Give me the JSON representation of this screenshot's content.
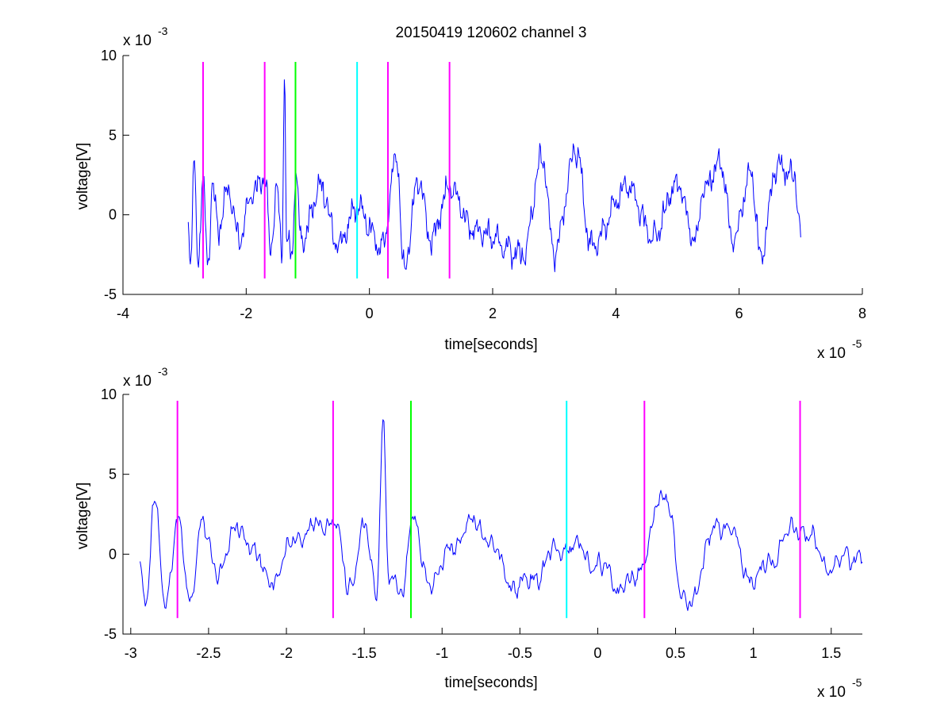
{
  "chart_data": [
    {
      "type": "line",
      "title": "20150419 120602 channel 3",
      "xlabel": "time[seconds]",
      "ylabel": "voltage[V]",
      "xlim": [
        -4e-05,
        8e-05
      ],
      "ylim": [
        -0.005,
        0.01
      ],
      "x_ticks": [
        -4e-05,
        -2e-05,
        0,
        2e-05,
        4e-05,
        6e-05,
        8e-05
      ],
      "x_tick_labels": [
        "-4",
        "-2",
        "0",
        "2",
        "4",
        "6",
        "8"
      ],
      "y_ticks": [
        -0.005,
        0,
        0.005,
        0.01
      ],
      "y_tick_labels": [
        "-5",
        "0",
        "5",
        "10"
      ],
      "x_exponent": {
        "base": "x 10",
        "power": "-5"
      },
      "y_exponent": {
        "base": "x 10",
        "power": "-3"
      },
      "series": [
        {
          "color": "#0000ff",
          "x_start": -2.94e-05,
          "x_end": 7e-05,
          "samples": 900,
          "keypoints": [
            [
              -2.94e-05,
              0.0003
            ],
            [
              -2.9e-05,
              -0.0033
            ],
            [
              -2.85e-05,
              0.0031
            ],
            [
              -2.78e-05,
              -0.0028
            ],
            [
              -2.7e-05,
              0.0019
            ],
            [
              -2.62e-05,
              -0.003
            ],
            [
              -2.55e-05,
              0.0018
            ],
            [
              -2.45e-05,
              -0.001
            ],
            [
              -2.3e-05,
              0.0015
            ],
            [
              -2.1e-05,
              -0.0016
            ],
            [
              -1.9e-05,
              0.0014
            ],
            [
              -1.7e-05,
              0.0023
            ],
            [
              -1.6e-05,
              -0.002
            ],
            [
              -1.5e-05,
              0.0015
            ],
            [
              -1.42e-05,
              -0.0025
            ],
            [
              -1.38e-05,
              0.0086
            ],
            [
              -1.34e-05,
              -0.002
            ],
            [
              -1.25e-05,
              -0.0022
            ],
            [
              -1.2e-05,
              0.0026
            ],
            [
              -1.1e-05,
              -0.0015
            ],
            [
              -8e-06,
              0.0018
            ],
            [
              -5e-06,
              -0.002
            ],
            [
              -2e-06,
              0.0005
            ],
            [
              2e-06,
              -0.002
            ],
            [
              4.5e-06,
              0.0037
            ],
            [
              5.5e-06,
              -0.0035
            ],
            [
              8e-06,
              0.002
            ],
            [
              1e-05,
              -0.0015
            ],
            [
              1.3e-05,
              0.0017
            ],
            [
              1.7e-05,
              -0.001
            ],
            [
              2.5e-05,
              -0.0025
            ],
            [
              2.8e-05,
              0.0036
            ],
            [
              3e-05,
              -0.0025
            ],
            [
              3.35e-05,
              0.004
            ],
            [
              3.6e-05,
              -0.002
            ],
            [
              4.2e-05,
              0.0018
            ],
            [
              4.6e-05,
              -0.0015
            ],
            [
              5e-05,
              0.002
            ],
            [
              5.3e-05,
              -0.0018
            ],
            [
              5.4e-05,
              0.0015
            ],
            [
              5.7e-05,
              0.0032
            ],
            [
              5.9e-05,
              -0.0018
            ],
            [
              6.2e-05,
              0.0028
            ],
            [
              6.35e-05,
              -0.0027
            ],
            [
              6.6e-05,
              0.003
            ],
            [
              6.9e-05,
              0.0024
            ],
            [
              7e-05,
              -0.0012
            ]
          ]
        }
      ],
      "markers": [
        {
          "x": -2.7e-05,
          "color": "#ff00ff",
          "y_range": [
            -0.004,
            0.0096
          ]
        },
        {
          "x": -1.7e-05,
          "color": "#ff00ff",
          "y_range": [
            -0.004,
            0.0096
          ]
        },
        {
          "x": -1.2e-05,
          "color": "#00ff00",
          "y_range": [
            -0.004,
            0.0096
          ]
        },
        {
          "x": -2e-06,
          "color": "#00ffff",
          "y_range": [
            -0.004,
            0.0096
          ]
        },
        {
          "x": 3e-06,
          "color": "#ff00ff",
          "y_range": [
            -0.004,
            0.0096
          ]
        },
        {
          "x": 1.3e-05,
          "color": "#ff00ff",
          "y_range": [
            -0.004,
            0.0096
          ]
        }
      ],
      "grid": false
    },
    {
      "type": "line",
      "xlabel": "time[seconds]",
      "ylabel": "voltage[V]",
      "xlim": [
        -3.05e-05,
        1.7e-05
      ],
      "ylim": [
        -0.005,
        0.01
      ],
      "x_ticks": [
        -3e-05,
        -2.5e-05,
        -2e-05,
        -1.5e-05,
        -1e-05,
        -5e-06,
        0,
        5e-06,
        1e-05,
        1.5e-05
      ],
      "x_tick_labels": [
        "-3",
        "-2.5",
        "-2",
        "-1.5",
        "-1",
        "-0.5",
        "0",
        "0.5",
        "1",
        "1.5"
      ],
      "y_ticks": [
        -0.005,
        0,
        0.005,
        0.01
      ],
      "y_tick_labels": [
        "-5",
        "0",
        "5",
        "10"
      ],
      "x_exponent": {
        "base": "x 10",
        "power": "-5"
      },
      "y_exponent": {
        "base": "x 10",
        "power": "-3"
      },
      "series": [
        {
          "color": "#0000ff",
          "x_start": -2.94e-05,
          "x_end": 1.7e-05,
          "samples": 700,
          "keypoints": [
            [
              -2.94e-05,
              0.0003
            ],
            [
              -2.9e-05,
              -0.0033
            ],
            [
              -2.85e-05,
              0.0031
            ],
            [
              -2.78e-05,
              -0.0028
            ],
            [
              -2.7e-05,
              0.0019
            ],
            [
              -2.62e-05,
              -0.003
            ],
            [
              -2.55e-05,
              0.0018
            ],
            [
              -2.45e-05,
              -0.001
            ],
            [
              -2.3e-05,
              0.0015
            ],
            [
              -2.1e-05,
              -0.0016
            ],
            [
              -1.9e-05,
              0.0014
            ],
            [
              -1.7e-05,
              0.0023
            ],
            [
              -1.6e-05,
              -0.002
            ],
            [
              -1.5e-05,
              0.0015
            ],
            [
              -1.42e-05,
              -0.0025
            ],
            [
              -1.38e-05,
              0.0086
            ],
            [
              -1.34e-05,
              -0.002
            ],
            [
              -1.25e-05,
              -0.0022
            ],
            [
              -1.2e-05,
              0.0026
            ],
            [
              -1.1e-05,
              -0.0015
            ],
            [
              -8e-06,
              0.0018
            ],
            [
              -5e-06,
              -0.002
            ],
            [
              -2e-06,
              0.0005
            ],
            [
              2e-06,
              -0.002
            ],
            [
              4.5e-06,
              0.0037
            ],
            [
              5.5e-06,
              -0.0035
            ],
            [
              8e-06,
              0.002
            ],
            [
              1e-05,
              -0.0015
            ],
            [
              1.3e-05,
              0.0017
            ],
            [
              1.5e-05,
              -0.0008
            ],
            [
              1.7e-05,
              0.0001
            ]
          ]
        }
      ],
      "markers": [
        {
          "x": -2.7e-05,
          "color": "#ff00ff",
          "y_range": [
            -0.004,
            0.0096
          ]
        },
        {
          "x": -1.7e-05,
          "color": "#ff00ff",
          "y_range": [
            -0.004,
            0.0096
          ]
        },
        {
          "x": -1.2e-05,
          "color": "#00ff00",
          "y_range": [
            -0.004,
            0.0096
          ]
        },
        {
          "x": -2e-06,
          "color": "#00ffff",
          "y_range": [
            -0.004,
            0.0096
          ]
        },
        {
          "x": 3e-06,
          "color": "#ff00ff",
          "y_range": [
            -0.004,
            0.0096
          ]
        },
        {
          "x": 1.3e-05,
          "color": "#ff00ff",
          "y_range": [
            -0.004,
            0.0096
          ]
        }
      ],
      "grid": false
    }
  ]
}
